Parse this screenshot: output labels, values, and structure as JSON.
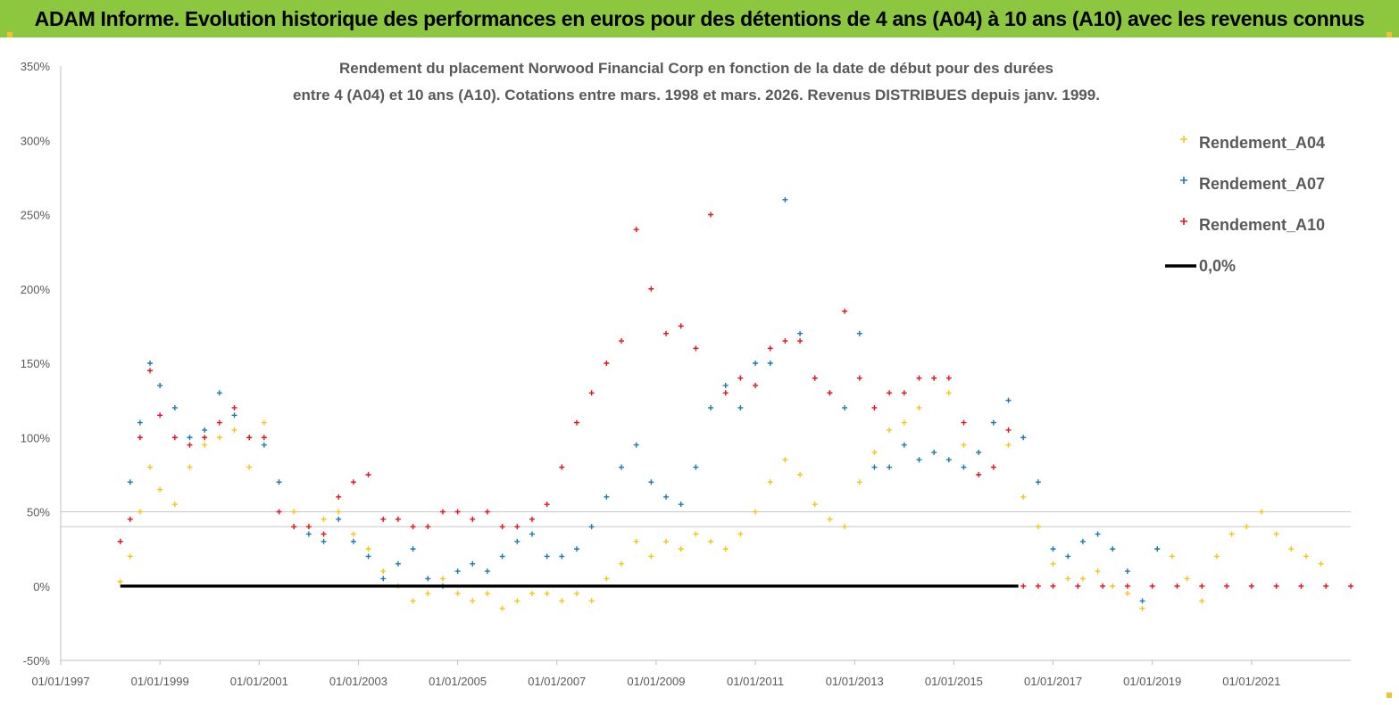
{
  "banner": {
    "title": "ADAM Informe. Evolution historique des performances en euros pour des détentions de 4 ans (A04) à 10 ans (A10) avec les revenus connus distribués",
    "background": "#8dc63f"
  },
  "chart_data": {
    "type": "scatter",
    "title_line1": "Rendement du placement Norwood Financial Corp en fonction de la date de début pour des durées",
    "title_line2": "entre 4 (A04) et 10 ans (A10). Cotations entre mars. 1998 et mars. 2026. Revenus DISTRIBUES depuis janv. 1999.",
    "xlabel": "",
    "ylabel": "",
    "x_ticks": [
      "01/01/1997",
      "01/01/1999",
      "01/01/2001",
      "01/01/2003",
      "01/01/2005",
      "01/01/2007",
      "01/01/2009",
      "01/01/2011",
      "01/01/2013",
      "01/01/2015",
      "01/01/2017",
      "01/01/2019",
      "01/01/2021"
    ],
    "y_ticks": [
      "-50%",
      "0%",
      "50%",
      "100%",
      "150%",
      "200%",
      "250%",
      "300%",
      "350%"
    ],
    "xlim": [
      "01/01/1997",
      "01/01/2023"
    ],
    "ylim": [
      -50,
      350
    ],
    "grid": "horizontal gridlines at 40% and 50%",
    "legend_position": "top-right",
    "series": [
      {
        "name": "Rendement_A04",
        "color": "#f5c518",
        "marker": "+",
        "x": [
          1998.2,
          1998.4,
          1998.6,
          1998.8,
          1999.0,
          1999.3,
          1999.6,
          1999.9,
          2000.2,
          2000.5,
          2000.8,
          2001.1,
          2001.4,
          2001.7,
          2002.0,
          2002.3,
          2002.6,
          2002.9,
          2003.2,
          2003.5,
          2003.8,
          2004.1,
          2004.4,
          2004.7,
          2005.0,
          2005.3,
          2005.6,
          2005.9,
          2006.2,
          2006.5,
          2006.8,
          2007.1,
          2007.4,
          2007.7,
          2008.0,
          2008.3,
          2008.6,
          2008.9,
          2009.2,
          2009.5,
          2009.8,
          2010.1,
          2010.4,
          2010.7,
          2011.0,
          2011.3,
          2011.6,
          2011.9,
          2012.2,
          2012.5,
          2012.8,
          2013.1,
          2013.4,
          2013.7,
          2014.0,
          2014.3,
          2014.6,
          2014.9,
          2015.2,
          2015.5,
          2015.8,
          2016.1,
          2016.4,
          2016.7,
          2017.0,
          2017.3,
          2017.6,
          2017.9,
          2018.2,
          2018.5,
          2018.8,
          2019.1,
          2019.4,
          2019.7,
          2020.0,
          2020.3,
          2020.6,
          2020.9,
          2021.2,
          2021.5,
          2021.8,
          2022.1,
          2022.4
        ],
        "y": [
          3,
          20,
          50,
          80,
          65,
          55,
          80,
          95,
          100,
          105,
          80,
          110,
          70,
          50,
          40,
          45,
          50,
          35,
          25,
          10,
          0,
          -10,
          -5,
          5,
          -5,
          -10,
          -5,
          -15,
          -10,
          -5,
          -5,
          -10,
          -5,
          -10,
          5,
          15,
          30,
          20,
          30,
          25,
          35,
          30,
          25,
          35,
          50,
          70,
          85,
          75,
          55,
          45,
          40,
          70,
          90,
          105,
          110,
          120,
          140,
          130,
          95,
          90,
          110,
          95,
          60,
          40,
          15,
          5,
          5,
          10,
          0,
          -5,
          -15,
          25,
          20,
          5,
          -10,
          20,
          35,
          40,
          50,
          35,
          25,
          20,
          15
        ]
      },
      {
        "name": "Rendement_A07",
        "color": "#1f77b4",
        "marker": "+",
        "x": [
          1998.2,
          1998.4,
          1998.6,
          1998.8,
          1999.0,
          1999.3,
          1999.6,
          1999.9,
          2000.2,
          2000.5,
          2000.8,
          2001.1,
          2001.4,
          2001.7,
          2002.0,
          2002.3,
          2002.6,
          2002.9,
          2003.2,
          2003.5,
          2003.8,
          2004.1,
          2004.4,
          2004.7,
          2005.0,
          2005.3,
          2005.6,
          2005.9,
          2006.2,
          2006.5,
          2006.8,
          2007.1,
          2007.4,
          2007.7,
          2008.0,
          2008.3,
          2008.6,
          2008.9,
          2009.2,
          2009.5,
          2009.8,
          2010.1,
          2010.4,
          2010.7,
          2011.0,
          2011.3,
          2011.6,
          2011.9,
          2012.2,
          2012.5,
          2012.8,
          2013.1,
          2013.4,
          2013.7,
          2014.0,
          2014.3,
          2014.6,
          2014.9,
          2015.2,
          2015.5,
          2015.8,
          2016.1,
          2016.4,
          2016.7,
          2017.0,
          2017.3,
          2017.6,
          2017.9,
          2018.2,
          2018.5,
          2018.8,
          2019.1
        ],
        "y": [
          30,
          70,
          110,
          150,
          135,
          120,
          100,
          105,
          130,
          115,
          100,
          95,
          70,
          40,
          35,
          30,
          45,
          30,
          20,
          5,
          15,
          25,
          5,
          0,
          10,
          15,
          10,
          20,
          30,
          35,
          20,
          20,
          25,
          40,
          60,
          80,
          95,
          70,
          60,
          55,
          80,
          120,
          135,
          120,
          150,
          150,
          260,
          170,
          140,
          130,
          120,
          170,
          80,
          80,
          95,
          85,
          90,
          85,
          80,
          90,
          110,
          125,
          100,
          70,
          25,
          20,
          30,
          35,
          25,
          10,
          -10,
          25
        ]
      },
      {
        "name": "Rendement_A10",
        "color": "#e8121c",
        "marker": "+",
        "x": [
          1998.2,
          1998.4,
          1998.6,
          1998.8,
          1999.0,
          1999.3,
          1999.6,
          1999.9,
          2000.2,
          2000.5,
          2000.8,
          2001.1,
          2001.4,
          2001.7,
          2002.0,
          2002.3,
          2002.6,
          2002.9,
          2003.2,
          2003.5,
          2003.8,
          2004.1,
          2004.4,
          2004.7,
          2005.0,
          2005.3,
          2005.6,
          2005.9,
          2006.2,
          2006.5,
          2006.8,
          2007.1,
          2007.4,
          2007.7,
          2008.0,
          2008.3,
          2008.6,
          2008.9,
          2009.2,
          2009.5,
          2009.8,
          2010.1,
          2010.4,
          2010.7,
          2011.0,
          2011.3,
          2011.6,
          2011.9,
          2012.2,
          2012.5,
          2012.8,
          2013.1,
          2013.4,
          2013.7,
          2014.0,
          2014.3,
          2014.6,
          2014.9,
          2015.2,
          2015.5,
          2015.8,
          2016.1,
          2016.4,
          2016.7,
          2017.0,
          2017.5,
          2018.0,
          2018.5,
          2019.0,
          2019.5,
          2020.0,
          2020.5,
          2021.0,
          2021.5,
          2022.0,
          2022.5,
          2023.0
        ],
        "y": [
          30,
          45,
          100,
          145,
          115,
          100,
          95,
          100,
          110,
          120,
          100,
          100,
          50,
          40,
          40,
          35,
          60,
          70,
          75,
          45,
          45,
          40,
          40,
          50,
          50,
          45,
          50,
          40,
          40,
          45,
          55,
          80,
          110,
          130,
          150,
          165,
          240,
          200,
          170,
          175,
          160,
          250,
          130,
          140,
          135,
          160,
          165,
          165,
          140,
          130,
          185,
          140,
          120,
          130,
          130,
          140,
          140,
          140,
          110,
          75,
          80,
          105,
          0,
          0,
          0,
          0,
          0,
          0,
          0,
          0,
          0,
          0,
          0,
          0,
          0,
          0,
          0
        ]
      },
      {
        "name": "0,0%",
        "color": "#000000",
        "marker": "line",
        "x": [
          1998.2,
          2016.3
        ],
        "y": [
          0,
          0
        ]
      }
    ]
  }
}
